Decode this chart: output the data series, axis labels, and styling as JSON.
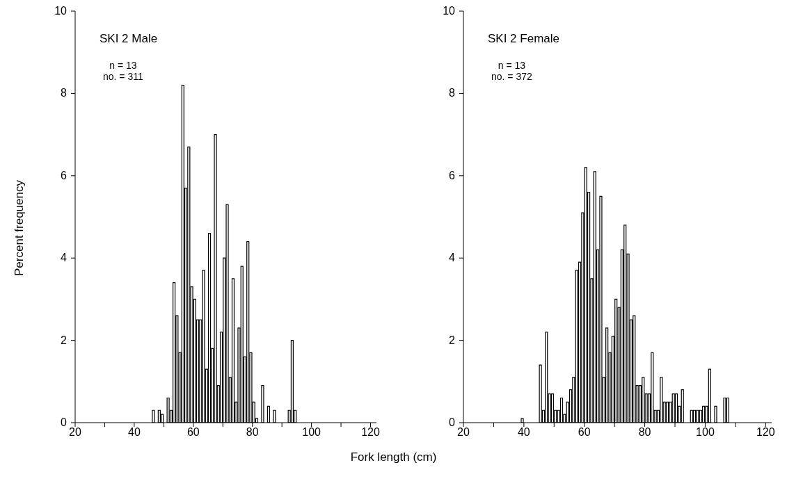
{
  "chart_data": [
    {
      "type": "histogram",
      "title": "SKI 2 Male",
      "annotations": [
        "n = 13",
        "no. = 311"
      ],
      "ylabel": "Percent frequency",
      "xlabel": "Fork length (cm)",
      "color": "#ffffff",
      "bins": [
        46,
        47,
        48,
        49,
        50,
        51,
        52,
        53,
        54,
        55,
        56,
        57,
        58,
        59,
        60,
        61,
        62,
        63,
        64,
        65,
        66,
        67,
        68,
        69,
        70,
        71,
        72,
        73,
        74,
        75,
        76,
        77,
        78,
        79,
        80,
        81,
        82,
        83,
        84,
        85,
        86,
        87,
        88,
        89,
        90,
        91,
        92,
        93,
        94,
        95
      ],
      "values": [
        0.3,
        0,
        0.3,
        0.2,
        0,
        0.6,
        0.3,
        3.4,
        2.6,
        1.7,
        8.2,
        5.7,
        6.7,
        3.3,
        3.0,
        2.5,
        2.5,
        3.7,
        1.3,
        4.6,
        1.8,
        7.0,
        0.9,
        2.2,
        4.0,
        5.3,
        1.1,
        3.5,
        0.5,
        2.3,
        3.8,
        1.6,
        4.4,
        1.7,
        0.5,
        0.1,
        0,
        0.9,
        0,
        0.4,
        0,
        0.3,
        0,
        0,
        0,
        0,
        0.3,
        2.0,
        0.3
      ],
      "xlim": [
        20,
        122
      ],
      "xticks": [
        20,
        {
          "value": 30,
          "label": null
        },
        40,
        {
          "value": 50,
          "label": null
        },
        60,
        {
          "value": 70,
          "label": null
        },
        80,
        {
          "value": 90,
          "label": null
        },
        100,
        {
          "value": 110,
          "label": null
        },
        120
      ],
      "ylim": [
        0,
        10
      ],
      "yticks": [
        0,
        2,
        4,
        6,
        8,
        10
      ]
    },
    {
      "type": "histogram",
      "title": "SKI 2 Female",
      "annotations": [
        "n = 13",
        "no. = 372"
      ],
      "color": "#ffffff",
      "bins": [
        39,
        40,
        41,
        42,
        43,
        44,
        45,
        46,
        47,
        48,
        49,
        50,
        51,
        52,
        53,
        54,
        55,
        56,
        57,
        58,
        59,
        60,
        61,
        62,
        63,
        64,
        65,
        66,
        67,
        68,
        69,
        70,
        71,
        72,
        73,
        74,
        75,
        76,
        77,
        78,
        79,
        80,
        81,
        82,
        83,
        84,
        85,
        86,
        87,
        88,
        89,
        90,
        91,
        92,
        93,
        94,
        95,
        96,
        97,
        98,
        99,
        100,
        101,
        102,
        103,
        104,
        105,
        106,
        107,
        108
      ],
      "values": [
        0.1,
        0,
        0,
        0,
        0,
        0,
        1.4,
        0.3,
        2.2,
        0.7,
        0.7,
        0.3,
        0.3,
        0.6,
        0.2,
        0.5,
        0.8,
        1.1,
        3.7,
        3.9,
        5.1,
        6.2,
        5.6,
        3.5,
        6.1,
        4.2,
        5.5,
        1.1,
        2.3,
        1.7,
        2.1,
        3.0,
        2.8,
        4.2,
        4.8,
        4.1,
        2.5,
        2.6,
        0.9,
        0.9,
        1.1,
        0.7,
        0.7,
        1.7,
        0.3,
        0.3,
        1.1,
        0.5,
        0.5,
        0.5,
        0.7,
        0.7,
        0.4,
        0.8,
        0,
        0,
        0.3,
        0.3,
        0.3,
        0.3,
        0.4,
        0.4,
        1.3,
        0,
        0.4,
        0,
        0,
        0.6,
        0.6
      ],
      "xlim": [
        20,
        122
      ],
      "xticks": [
        20,
        {
          "value": 30,
          "label": null
        },
        40,
        {
          "value": 50,
          "label": null
        },
        60,
        {
          "value": 70,
          "label": null
        },
        80,
        {
          "value": 90,
          "label": null
        },
        100,
        {
          "value": 110,
          "label": null
        },
        120
      ],
      "ylim": [
        0,
        10
      ],
      "yticks": [
        0,
        2,
        4,
        6,
        8,
        10
      ]
    }
  ]
}
